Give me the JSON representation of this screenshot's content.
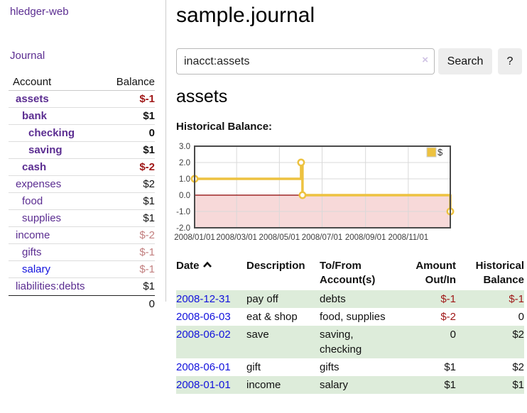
{
  "app": {
    "title": "hledger-web"
  },
  "sidebar": {
    "journal_label": "Journal",
    "accounts": {
      "header_account": "Account",
      "header_balance": "Balance",
      "rows": [
        {
          "name": "assets",
          "balance": "$-1"
        },
        {
          "name": "bank",
          "balance": "$1"
        },
        {
          "name": "checking",
          "balance": "0"
        },
        {
          "name": "saving",
          "balance": "$1"
        },
        {
          "name": "cash",
          "balance": "$-2"
        },
        {
          "name": "expenses",
          "balance": "$2"
        },
        {
          "name": "food",
          "balance": "$1"
        },
        {
          "name": "supplies",
          "balance": "$1"
        },
        {
          "name": "income",
          "balance": "$-2"
        },
        {
          "name": "gifts",
          "balance": "$-1"
        },
        {
          "name": "salary",
          "balance": "$-1"
        },
        {
          "name": "liabilities:debts",
          "balance": "$1"
        }
      ],
      "total": "0"
    }
  },
  "main": {
    "title": "sample.journal",
    "search": {
      "value": "inacct:assets",
      "clear_icon": "×",
      "search_button": "Search",
      "help_button": "?"
    },
    "account_heading": "assets",
    "chart_heading": "Historical Balance:"
  },
  "chart_data": {
    "type": "line",
    "title": "Historical Balance",
    "step": true,
    "legend": [
      {
        "label": "$",
        "color": "#edc240"
      }
    ],
    "legend_position": "top-right",
    "grid": true,
    "negative_region_shaded": true,
    "x_axis": {
      "unit": "date",
      "min": "2008/01/01",
      "max": "2008/12/31",
      "span_days": 365,
      "tick_labels": [
        "2008/01/01",
        "2008/03/01",
        "2008/05/01",
        "2008/07/01",
        "2008/09/01",
        "2008/11/01"
      ],
      "tick_days": [
        0,
        60,
        121,
        182,
        244,
        305
      ]
    },
    "y_axis": {
      "min": -2,
      "max": 3,
      "tick_labels": [
        "3.0",
        "2.0",
        "1.0",
        "0.0",
        "-1.0",
        "-2.0"
      ],
      "tick_values": [
        3,
        2,
        1,
        0,
        -1,
        -2
      ]
    },
    "series": [
      {
        "name": "$",
        "points": [
          {
            "date": "2008-01-01",
            "day": 0,
            "value": 1
          },
          {
            "date": "2008-06-01",
            "day": 152,
            "value": 2
          },
          {
            "date": "2008-06-03",
            "day": 154,
            "value": 0
          },
          {
            "date": "2008-12-31",
            "day": 365,
            "value": -1
          }
        ]
      }
    ]
  },
  "transactions": {
    "headers": {
      "date": "Date",
      "description": "Description",
      "tofrom": "To/From Account(s)",
      "amount": "Amount Out/In",
      "balance": "Historical Balance"
    },
    "sort": {
      "column": "date",
      "direction": "ascending"
    },
    "rows": [
      {
        "date": "2008-12-31",
        "description": "pay off",
        "accounts": "debts",
        "amount": "$-1",
        "balance": "$-1"
      },
      {
        "date": "2008-06-03",
        "description": "eat & shop",
        "accounts": "food, supplies",
        "amount": "$-2",
        "balance": "0"
      },
      {
        "date": "2008-06-02",
        "description": "save",
        "accounts": "saving, checking",
        "amount": "0",
        "balance": "$2"
      },
      {
        "date": "2008-06-01",
        "description": "gift",
        "accounts": "gifts",
        "amount": "$1",
        "balance": "$2"
      },
      {
        "date": "2008-01-01",
        "description": "income",
        "accounts": "salary",
        "amount": "$1",
        "balance": "$1"
      }
    ]
  },
  "colors": {
    "link_purple": "#5b2d91",
    "link_blue": "#1212dd",
    "negative_strong": "#a01818",
    "negative_muted": "#c27f7f",
    "row_green": "#ddecda",
    "series_gold": "#edc240",
    "negative_area": "#f7d9d9",
    "zero_line": "#8b0000",
    "grid_line": "#d9d9d9",
    "plot_border": "#4a4a4a",
    "button_gray": "#ededed"
  }
}
